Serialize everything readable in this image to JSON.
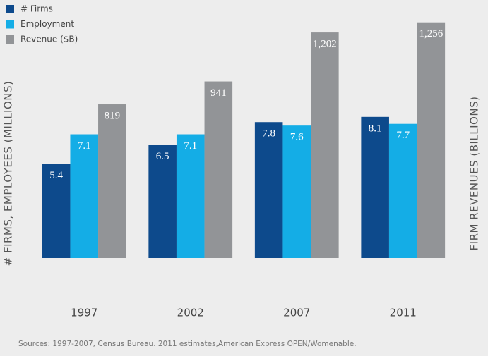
{
  "chart_data": {
    "type": "bar",
    "categories": [
      "1997",
      "2002",
      "2007",
      "2011"
    ],
    "series": [
      {
        "name": "# Firms",
        "color": "#0d4a8c",
        "values": [
          5.4,
          6.5,
          7.8,
          8.1
        ]
      },
      {
        "name": "Employment",
        "color": "#14ade6",
        "values": [
          7.1,
          7.1,
          7.6,
          7.7
        ]
      },
      {
        "name": "Revenue ($B)",
        "color": "#929497",
        "axis": "y2",
        "values": [
          819,
          941,
          1202,
          1256
        ],
        "value_labels": [
          "819",
          "941",
          "1,202",
          "1,256"
        ]
      }
    ],
    "ylabel": "# FIRMS, EMPLOYEES (MILLIONS)",
    "y2label": "FIRM REVENUES (BILLIONS)",
    "ylim": [
      0,
      14
    ],
    "y2lim": [
      0,
      1300
    ],
    "legend": "upper left",
    "note": "Sources: 1997-2007, Census Bureau. 2011 estimates,American Express OPEN/Womenable."
  }
}
